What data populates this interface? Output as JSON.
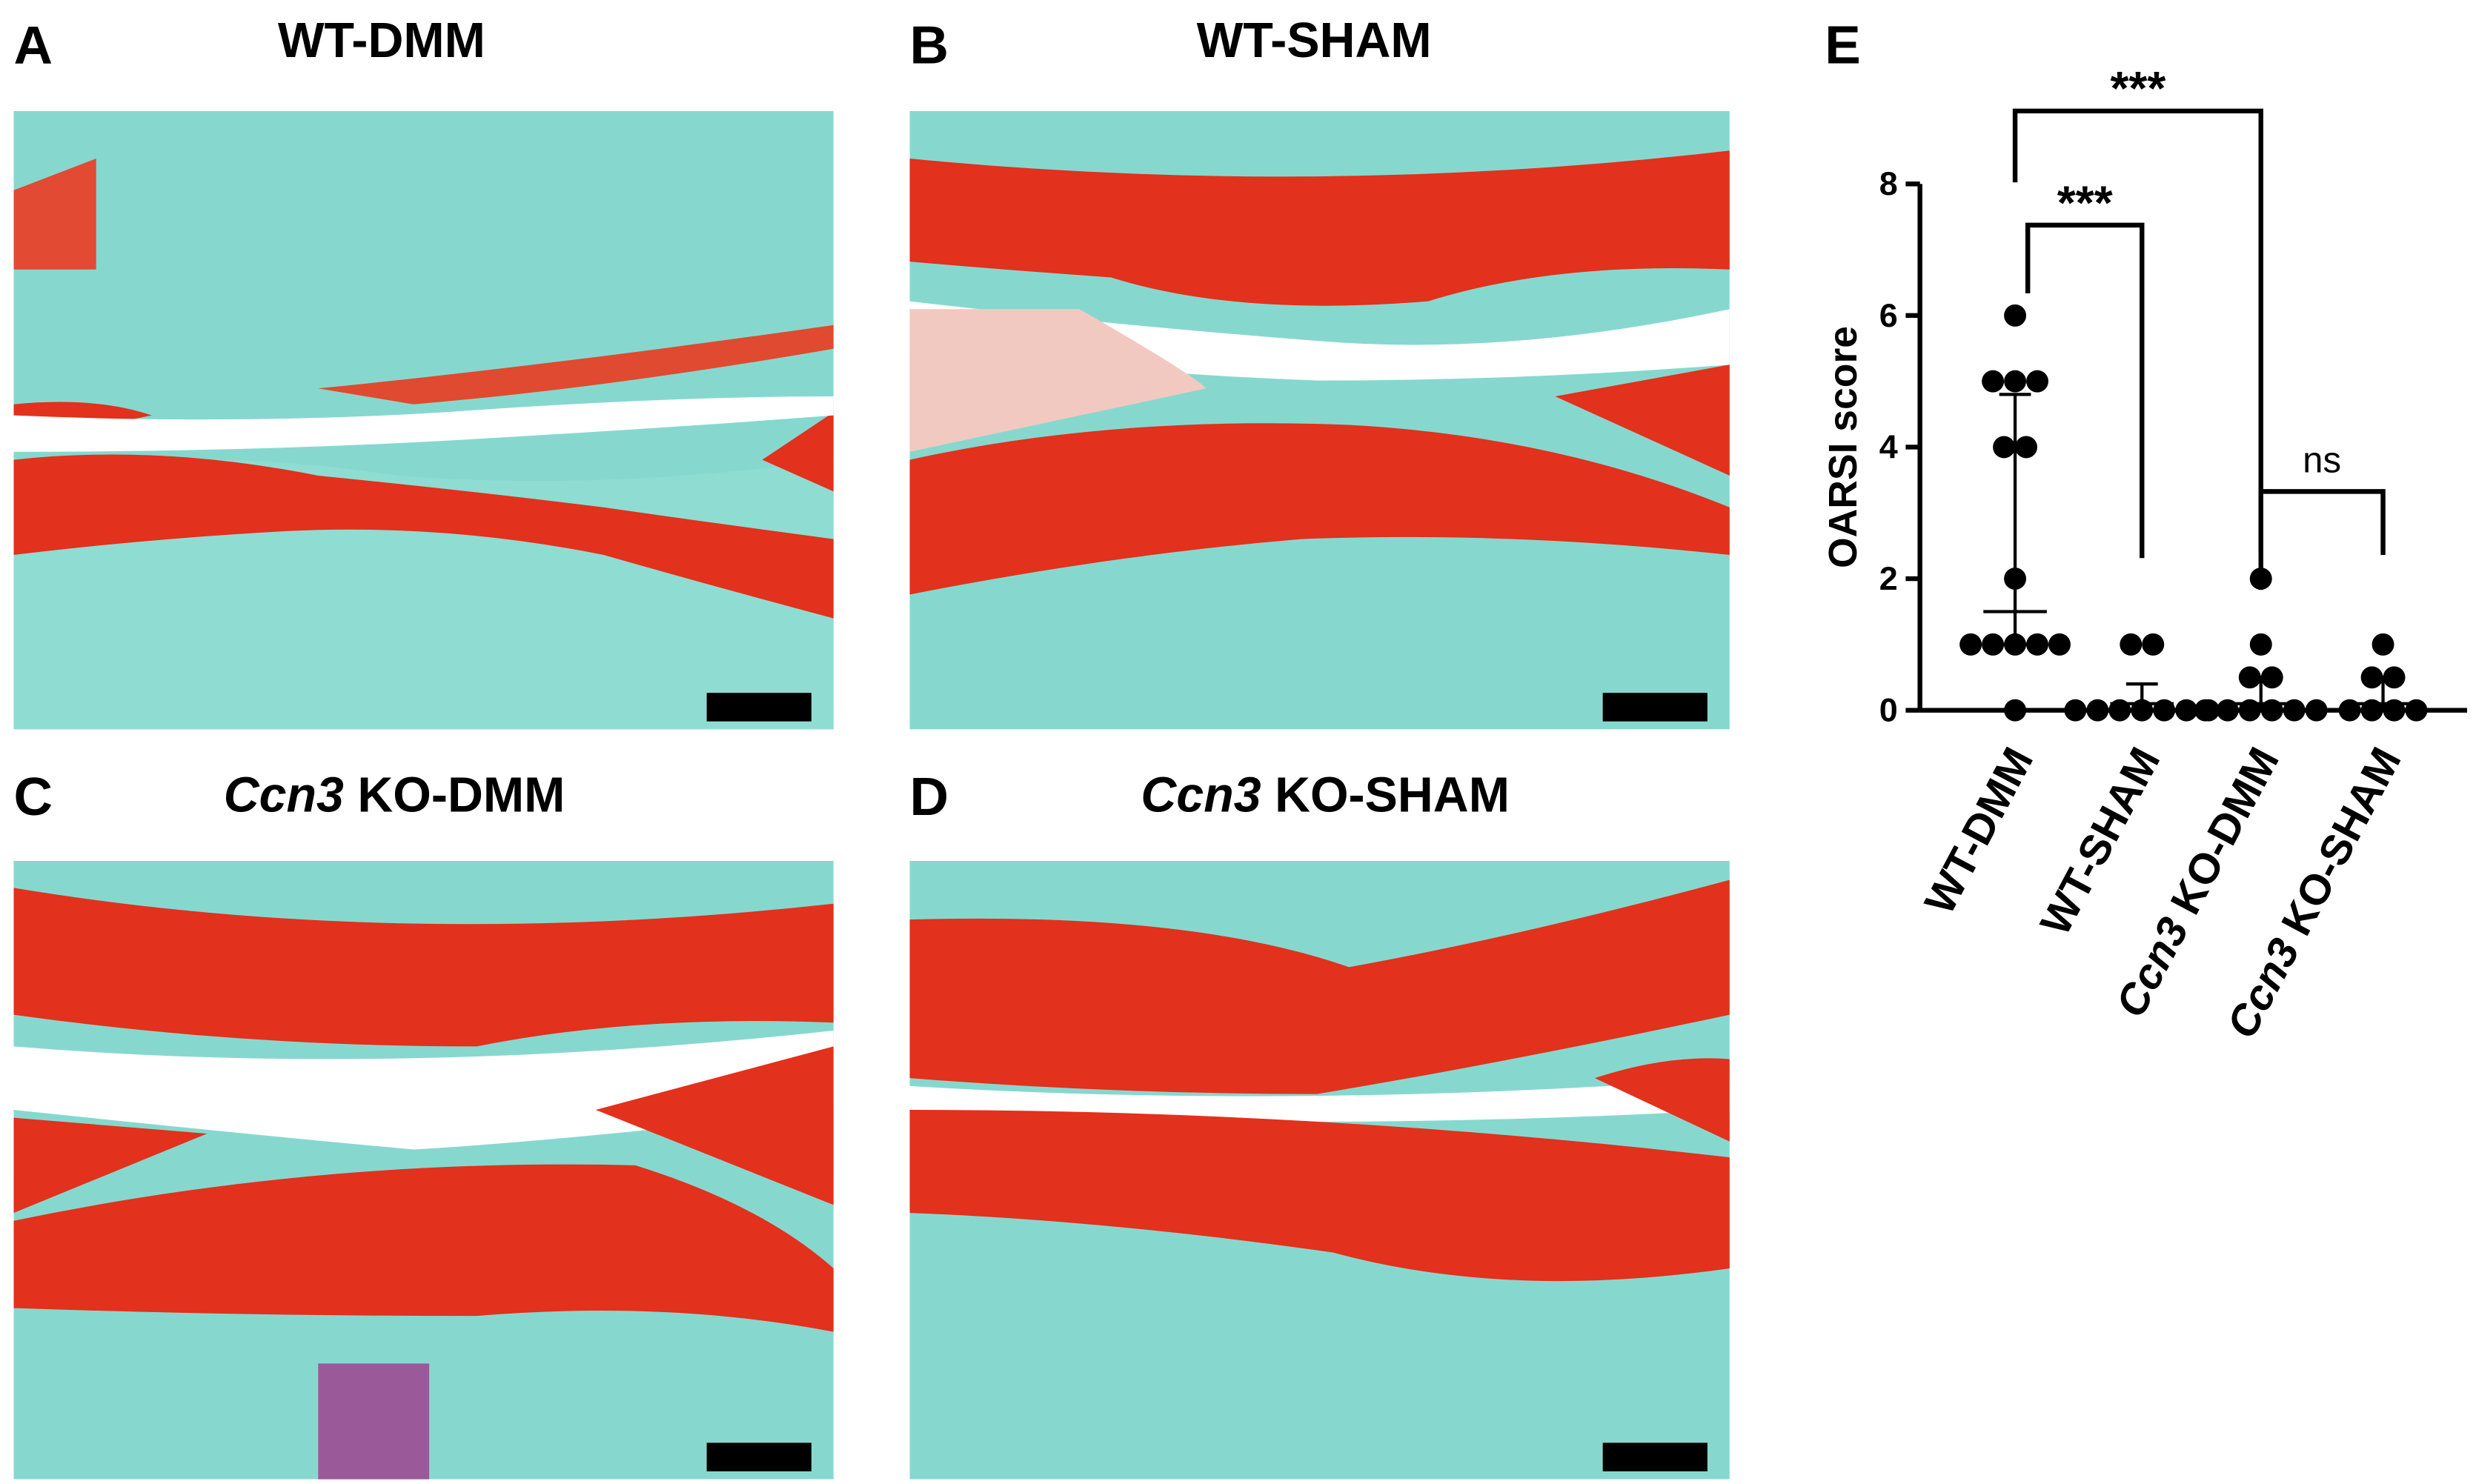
{
  "panels": [
    {
      "letter": "A",
      "title": "WT-DMM"
    },
    {
      "letter": "B",
      "title": "WT-SHAM"
    },
    {
      "letter": "C",
      "italic": "Ccn3",
      "title": "KO-DMM"
    },
    {
      "letter": "D",
      "italic": "Ccn3",
      "title": "KO-SHAM"
    }
  ],
  "chart_data": {
    "type": "scatter",
    "letter": "E",
    "ylabel": "OARSI score",
    "categories": [
      "WT-DMM",
      "WT-SHAM",
      "Ccn3 KO-DMM",
      "Ccn3 KO-SHAM"
    ],
    "italic_words": [
      "Ccn3"
    ],
    "values": [
      [
        6,
        5,
        5,
        5,
        4,
        4,
        2,
        1,
        1,
        1,
        1,
        1,
        0
      ],
      [
        1,
        1,
        0,
        0,
        0,
        0,
        0,
        0,
        0
      ],
      [
        2,
        1,
        0.5,
        0.5,
        0,
        0,
        0,
        0,
        0,
        0
      ],
      [
        1,
        0.5,
        0.5,
        0,
        0,
        0,
        0
      ]
    ],
    "center": [
      1.5,
      0.1,
      0.1,
      0.1
    ],
    "error_low": [
      1,
      0,
      0,
      0
    ],
    "error_high": [
      4.8,
      0.4,
      0.5,
      0.5
    ],
    "color": "#000000",
    "ylim": [
      0,
      8
    ],
    "yticks": [
      0,
      2,
      4,
      6,
      8
    ],
    "grid": false,
    "annotations": [
      {
        "from": 0,
        "to": 2,
        "label": "***"
      },
      {
        "from": 0,
        "to": 1,
        "label": "***"
      },
      {
        "from": 2,
        "to": 3,
        "label": "ns"
      }
    ]
  }
}
